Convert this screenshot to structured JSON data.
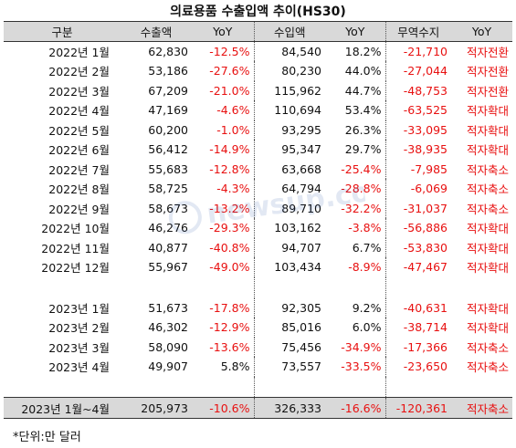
{
  "title": "의료용품 수출입액 추이(HS30)",
  "headers": [
    "구분",
    "수출액",
    "YoY",
    "수입액",
    "YoY",
    "무역수지",
    "YoY"
  ],
  "rows": [
    {
      "period": "2022년 1월",
      "export": "62,830",
      "export_yoy": "-12.5%",
      "import": "84,540",
      "import_yoy": "18.2%",
      "balance": "-21,710",
      "status": "적자전환"
    },
    {
      "period": "2022년 2월",
      "export": "53,186",
      "export_yoy": "-27.6%",
      "import": "80,230",
      "import_yoy": "44.0%",
      "balance": "-27,044",
      "status": "적자전환"
    },
    {
      "period": "2022년 3월",
      "export": "67,209",
      "export_yoy": "-21.0%",
      "import": "115,962",
      "import_yoy": "44.7%",
      "balance": "-48,753",
      "status": "적자전환"
    },
    {
      "period": "2022년 4월",
      "export": "47,169",
      "export_yoy": "-4.6%",
      "import": "110,694",
      "import_yoy": "53.4%",
      "balance": "-63,525",
      "status": "적자확대"
    },
    {
      "period": "2022년 5월",
      "export": "60,200",
      "export_yoy": "-1.0%",
      "import": "93,295",
      "import_yoy": "26.3%",
      "balance": "-33,095",
      "status": "적자확대"
    },
    {
      "period": "2022년 6월",
      "export": "56,412",
      "export_yoy": "-14.9%",
      "import": "95,347",
      "import_yoy": "29.7%",
      "balance": "-38,935",
      "status": "적자확대"
    },
    {
      "period": "2022년 7월",
      "export": "55,683",
      "export_yoy": "-12.8%",
      "import": "63,668",
      "import_yoy": "-25.4%",
      "balance": "-7,985",
      "status": "적자축소"
    },
    {
      "period": "2022년 8월",
      "export": "58,725",
      "export_yoy": "-4.3%",
      "import": "64,794",
      "import_yoy": "-28.8%",
      "balance": "-6,069",
      "status": "적자축소"
    },
    {
      "period": "2022년 9월",
      "export": "58,673",
      "export_yoy": "-13.2%",
      "import": "89,710",
      "import_yoy": "-32.2%",
      "balance": "-31,037",
      "status": "적자축소"
    },
    {
      "period": "2022년 10월",
      "export": "46,276",
      "export_yoy": "-29.3%",
      "import": "103,162",
      "import_yoy": "-3.8%",
      "balance": "-56,886",
      "status": "적자확대"
    },
    {
      "period": "2022년 11월",
      "export": "40,877",
      "export_yoy": "-40.8%",
      "import": "94,707",
      "import_yoy": "6.7%",
      "balance": "-53,830",
      "status": "적자확대"
    },
    {
      "period": "2022년 12월",
      "export": "55,967",
      "export_yoy": "-49.0%",
      "import": "103,434",
      "import_yoy": "-8.9%",
      "balance": "-47,467",
      "status": "적자확대"
    },
    {
      "period": "2023년 1월",
      "export": "51,673",
      "export_yoy": "-17.8%",
      "import": "92,305",
      "import_yoy": "9.2%",
      "balance": "-40,631",
      "status": "적자확대"
    },
    {
      "period": "2023년 2월",
      "export": "46,302",
      "export_yoy": "-12.9%",
      "import": "85,016",
      "import_yoy": "6.0%",
      "balance": "-38,714",
      "status": "적자확대"
    },
    {
      "period": "2023년 3월",
      "export": "58,090",
      "export_yoy": "-13.6%",
      "import": "75,456",
      "import_yoy": "-34.9%",
      "balance": "-17,366",
      "status": "적자축소"
    },
    {
      "period": "2023년 4월",
      "export": "49,907",
      "export_yoy": "5.8%",
      "import": "73,557",
      "import_yoy": "-33.5%",
      "balance": "-23,650",
      "status": "적자축소"
    }
  ],
  "total": {
    "period": "2023년 1월~4월",
    "export": "205,973",
    "export_yoy": "-10.6%",
    "import": "326,333",
    "import_yoy": "-16.6%",
    "balance": "-120,361",
    "status": "적자축소"
  },
  "note": "*단위:만 달러",
  "watermark": "newsup.com",
  "colors": {
    "negative": "#e81010",
    "header_bg": "#d9d9d9"
  }
}
